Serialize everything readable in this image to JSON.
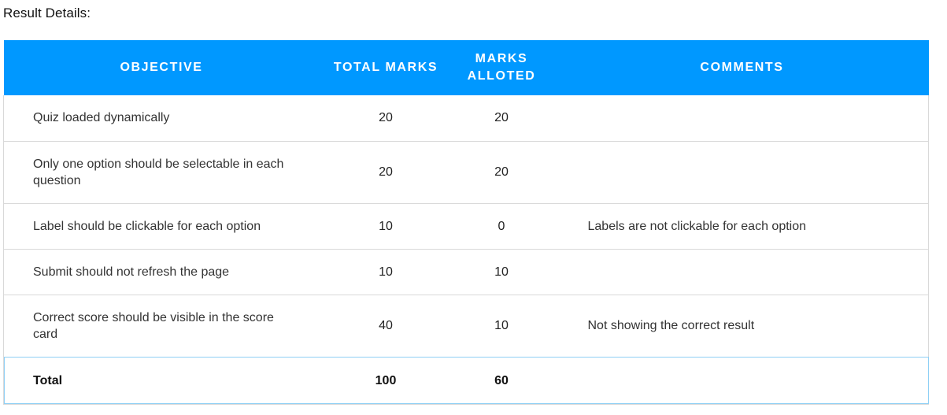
{
  "section_title": "Result Details:",
  "table": {
    "headers": {
      "objective": "OBJECTIVE",
      "total_marks": "TOTAL MARKS",
      "marks_alloted": "MARKS ALLOTED",
      "comments": "COMMENTS"
    },
    "rows": [
      {
        "objective": "Quiz loaded dynamically",
        "total": "20",
        "alloted": "20",
        "comment": ""
      },
      {
        "objective": "Only one option should be selectable in each question",
        "total": "20",
        "alloted": "20",
        "comment": ""
      },
      {
        "objective": "Label should be clickable for each option",
        "total": "10",
        "alloted": "0",
        "comment": "Labels are not clickable for each option"
      },
      {
        "objective": "Submit should not refresh the page",
        "total": "10",
        "alloted": "10",
        "comment": ""
      },
      {
        "objective": "Correct score should be visible in the score card",
        "total": "40",
        "alloted": "10",
        "comment": "Not showing the correct result"
      }
    ],
    "total_row": {
      "label": "Total",
      "total": "100",
      "alloted": "60",
      "comment": ""
    }
  },
  "colors": {
    "header_background": "#0098ff",
    "header_text": "#ffffff",
    "row_border": "#d9d9d9",
    "total_row_border": "#8fd0f5"
  }
}
